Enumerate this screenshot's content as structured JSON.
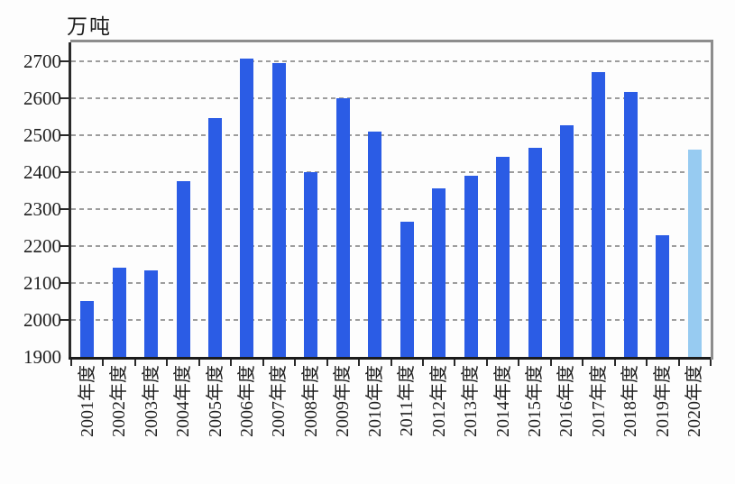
{
  "colors": {
    "bar": "#2b5ce5",
    "bar_highlight": "#97cbf1",
    "gridline": "#9d9d9d",
    "axis_dark": "#222222",
    "axis_gray": "#8d8d8d",
    "text": "#1e1e1e",
    "background": "#fdfdfd"
  },
  "chart_data": {
    "type": "bar",
    "title": "",
    "ylabel": "万吨",
    "xlabel": "",
    "categories": [
      "2001年度",
      "2002年度",
      "2003年度",
      "2004年度",
      "2005年度",
      "2006年度",
      "2007年度",
      "2008年度",
      "2009年度",
      "2010年度",
      "2011年度",
      "2012年度",
      "2013年度",
      "2014年度",
      "2015年度",
      "2016年度",
      "2017年度",
      "2018年度",
      "2019年度",
      "2020年度"
    ],
    "values": [
      2050,
      2140,
      2135,
      2375,
      2545,
      2705,
      2695,
      2400,
      2600,
      2510,
      2265,
      2355,
      2390,
      2440,
      2465,
      2525,
      2670,
      2615,
      2230,
      2460
    ],
    "ylim": [
      1900,
      2750
    ],
    "yticks": [
      1900,
      2000,
      2100,
      2200,
      2300,
      2400,
      2500,
      2600,
      2700
    ],
    "grid": "horizontal-dashed",
    "legend_position": "none",
    "highlight": {
      "category": "2020年度",
      "note": "last bar shown in light blue"
    }
  }
}
